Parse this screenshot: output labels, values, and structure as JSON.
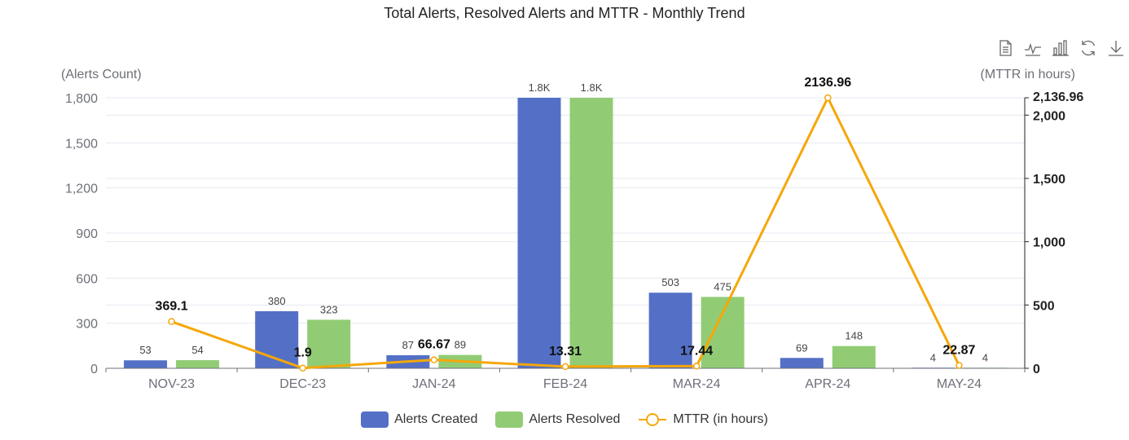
{
  "chart_data": {
    "type": "bar",
    "title": "Total Alerts, Resolved Alerts and MTTR - Monthly Trend",
    "categories": [
      "NOV-23",
      "DEC-23",
      "JAN-24",
      "FEB-24",
      "MAR-24",
      "APR-24",
      "MAY-24"
    ],
    "series": [
      {
        "name": "Alerts Created",
        "type": "bar",
        "axis": "left",
        "color": "#5470c6",
        "values": [
          53,
          380,
          87,
          1800,
          503,
          69,
          4
        ],
        "labels": [
          "53",
          "380",
          "87",
          "1.8K",
          "503",
          "69",
          "4"
        ]
      },
      {
        "name": "Alerts Resolved",
        "type": "bar",
        "axis": "left",
        "color": "#91cc75",
        "values": [
          54,
          323,
          89,
          1800,
          475,
          148,
          4
        ],
        "labels": [
          "54",
          "323",
          "89",
          "1.8K",
          "475",
          "148",
          "4"
        ]
      },
      {
        "name": "MTTR (in hours)",
        "type": "line",
        "axis": "right",
        "color": "#f5a70a",
        "values": [
          369.1,
          1.9,
          66.67,
          13.31,
          17.44,
          2136.96,
          22.87
        ],
        "labels": [
          "369.1",
          "1.9",
          "66.67",
          "13.31",
          "17.44",
          "2136.96",
          "22.87"
        ]
      }
    ],
    "y_left": {
      "label": "(Alerts Count)",
      "ylim": [
        0,
        1800
      ],
      "ticks": [
        0,
        300,
        600,
        900,
        1200,
        1500,
        1800
      ],
      "tick_labels": [
        "0",
        "300",
        "600",
        "900",
        "1,200",
        "1,500",
        "1,800"
      ]
    },
    "y_right": {
      "label": "(MTTR in hours)",
      "ylim": [
        0,
        2136.96
      ],
      "ticks": [
        0,
        500,
        1000,
        1500,
        2000,
        2136.96
      ],
      "tick_labels": [
        "0",
        "500",
        "1,000",
        "1,500",
        "2,000",
        "2,136.96"
      ]
    },
    "legend": "bottom-center"
  },
  "toolbox": [
    "data-view-icon",
    "line-chart-icon",
    "bar-chart-icon",
    "restore-icon",
    "download-icon"
  ]
}
